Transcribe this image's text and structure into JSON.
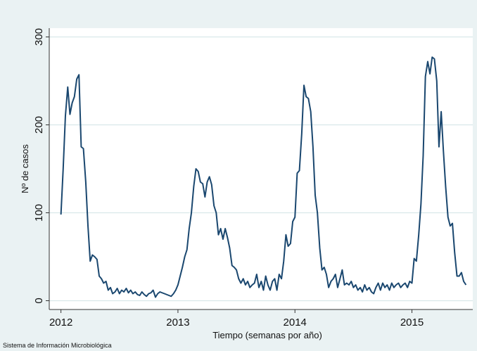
{
  "chart_data": {
    "type": "line",
    "ylabel": "Nº de casos",
    "xlabel": "Tiempo (semanas por año)",
    "note": "Sistema de Información Microbiológica",
    "xlim": [
      2011.9,
      2015.52
    ],
    "xticks": [
      2012,
      2013,
      2014,
      2015
    ],
    "ylim": [
      -10,
      310
    ],
    "yticks": [
      0,
      100,
      200,
      300
    ],
    "grid": true,
    "x": [
      2012,
      2012.019,
      2012.038,
      2012.058,
      2012.077,
      2012.096,
      2012.115,
      2012.135,
      2012.154,
      2012.173,
      2012.192,
      2012.212,
      2012.231,
      2012.25,
      2012.269,
      2012.288,
      2012.308,
      2012.327,
      2012.346,
      2012.365,
      2012.385,
      2012.404,
      2012.423,
      2012.442,
      2012.462,
      2012.481,
      2012.5,
      2012.519,
      2012.538,
      2012.558,
      2012.577,
      2012.596,
      2012.615,
      2012.635,
      2012.654,
      2012.673,
      2012.692,
      2012.712,
      2012.731,
      2012.75,
      2012.769,
      2012.788,
      2012.808,
      2012.827,
      2012.846,
      2012.865,
      2012.885,
      2012.904,
      2012.923,
      2012.942,
      2012.962,
      2012.981,
      2013,
      2013.019,
      2013.038,
      2013.058,
      2013.077,
      2013.096,
      2013.115,
      2013.135,
      2013.154,
      2013.173,
      2013.192,
      2013.212,
      2013.231,
      2013.25,
      2013.269,
      2013.288,
      2013.308,
      2013.327,
      2013.346,
      2013.365,
      2013.385,
      2013.404,
      2013.423,
      2013.442,
      2013.462,
      2013.481,
      2013.5,
      2013.519,
      2013.538,
      2013.558,
      2013.577,
      2013.596,
      2013.615,
      2013.635,
      2013.654,
      2013.673,
      2013.692,
      2013.712,
      2013.731,
      2013.75,
      2013.769,
      2013.788,
      2013.808,
      2013.827,
      2013.846,
      2013.865,
      2013.885,
      2013.904,
      2013.923,
      2013.942,
      2013.962,
      2013.981,
      2014,
      2014.019,
      2014.038,
      2014.058,
      2014.077,
      2014.096,
      2014.115,
      2014.135,
      2014.154,
      2014.173,
      2014.192,
      2014.212,
      2014.231,
      2014.25,
      2014.269,
      2014.288,
      2014.308,
      2014.327,
      2014.346,
      2014.365,
      2014.385,
      2014.404,
      2014.423,
      2014.442,
      2014.462,
      2014.481,
      2014.5,
      2014.519,
      2014.538,
      2014.558,
      2014.577,
      2014.596,
      2014.615,
      2014.635,
      2014.654,
      2014.673,
      2014.692,
      2014.712,
      2014.731,
      2014.75,
      2014.769,
      2014.788,
      2014.808,
      2014.827,
      2014.846,
      2014.865,
      2014.885,
      2014.904,
      2014.923,
      2014.942,
      2014.962,
      2014.981,
      2015,
      2015.019,
      2015.038,
      2015.058,
      2015.077,
      2015.096,
      2015.115,
      2015.135,
      2015.154,
      2015.173,
      2015.192,
      2015.212,
      2015.231,
      2015.25,
      2015.269,
      2015.288,
      2015.308,
      2015.327,
      2015.346,
      2015.365,
      2015.385,
      2015.404,
      2015.423,
      2015.442,
      2015.462
    ],
    "series": [
      {
        "name": "casos",
        "color": "#1a476f",
        "values": [
          98,
          150,
          210,
          243,
          212,
          225,
          232,
          252,
          257,
          175,
          173,
          135,
          85,
          45,
          52,
          50,
          47,
          28,
          25,
          20,
          22,
          12,
          15,
          8,
          10,
          14,
          8,
          12,
          10,
          14,
          9,
          12,
          8,
          10,
          7,
          6,
          10,
          7,
          5,
          8,
          9,
          12,
          4,
          8,
          10,
          9,
          8,
          7,
          6,
          5,
          8,
          12,
          18,
          28,
          38,
          50,
          58,
          82,
          100,
          130,
          150,
          147,
          135,
          133,
          118,
          135,
          141,
          132,
          108,
          100,
          75,
          82,
          70,
          82,
          72,
          60,
          40,
          38,
          35,
          25,
          20,
          25,
          18,
          22,
          15,
          18,
          20,
          30,
          15,
          22,
          12,
          28,
          18,
          12,
          22,
          25,
          12,
          30,
          25,
          45,
          75,
          62,
          65,
          90,
          95,
          145,
          148,
          190,
          245,
          232,
          230,
          215,
          175,
          120,
          100,
          60,
          35,
          38,
          30,
          15,
          22,
          25,
          30,
          15,
          25,
          35,
          18,
          20,
          18,
          22,
          15,
          18,
          12,
          15,
          10,
          18,
          12,
          15,
          10,
          8,
          15,
          20,
          12,
          20,
          15,
          18,
          12,
          20,
          15,
          18,
          20,
          15,
          18,
          20,
          15,
          22,
          20,
          48,
          45,
          75,
          110,
          165,
          255,
          272,
          258,
          277,
          275,
          250,
          175,
          215,
          170,
          130,
          95,
          85,
          88,
          55,
          28,
          28,
          32,
          22,
          18
        ]
      }
    ]
  }
}
